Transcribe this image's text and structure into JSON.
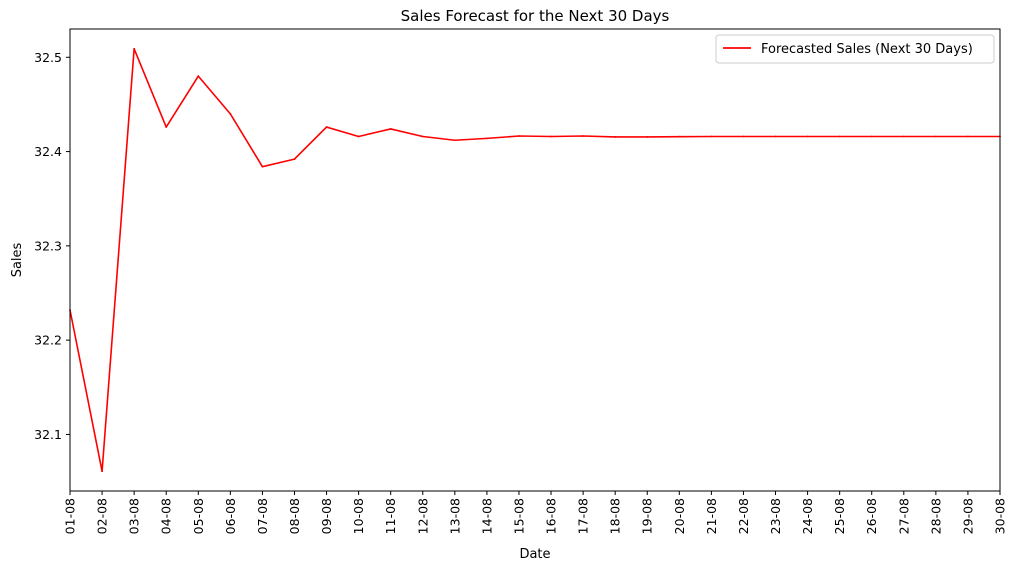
{
  "chart_data": {
    "type": "line",
    "title": "Sales Forecast for the Next 30 Days",
    "xlabel": "Date",
    "ylabel": "Sales",
    "categories": [
      "01-08",
      "02-08",
      "03-08",
      "04-08",
      "05-08",
      "06-08",
      "07-08",
      "08-08",
      "09-08",
      "10-08",
      "11-08",
      "12-08",
      "13-08",
      "14-08",
      "15-08",
      "16-08",
      "17-08",
      "18-08",
      "19-08",
      "20-08",
      "21-08",
      "22-08",
      "23-08",
      "24-08",
      "25-08",
      "26-08",
      "27-08",
      "28-08",
      "29-08",
      "30-08"
    ],
    "yticks": [
      "32.1",
      "32.2",
      "32.3",
      "32.4",
      "32.5"
    ],
    "ylim": [
      32.04,
      32.53
    ],
    "grid": false,
    "legend_position": "top-right",
    "series": [
      {
        "name": "Forecasted Sales (Next 30 Days)",
        "color": "#ff0000",
        "values": [
          32.232,
          32.061,
          32.509,
          32.426,
          32.48,
          32.44,
          32.384,
          32.392,
          32.426,
          32.416,
          32.424,
          32.416,
          32.412,
          32.414,
          32.4165,
          32.416,
          32.4165,
          32.4155,
          32.4155,
          32.4158,
          32.416,
          32.416,
          32.416,
          32.416,
          32.416,
          32.416,
          32.416,
          32.416,
          32.416,
          32.416
        ]
      }
    ]
  }
}
